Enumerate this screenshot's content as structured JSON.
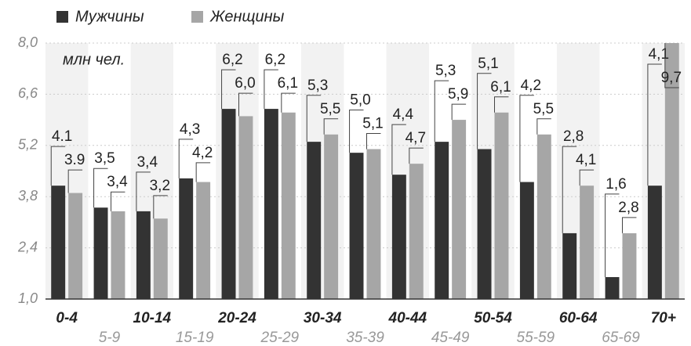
{
  "chart_data": {
    "type": "bar",
    "unit_label": "млн чел.",
    "categories": [
      "0-4",
      "5-9",
      "10-14",
      "15-19",
      "20-24",
      "25-29",
      "30-34",
      "35-39",
      "40-44",
      "45-49",
      "50-54",
      "55-59",
      "60-64",
      "65-69",
      "70+"
    ],
    "series": [
      {
        "name": "Мужчины",
        "color": "#333333",
        "values": [
          4.1,
          3.5,
          3.4,
          4.3,
          6.2,
          6.2,
          5.3,
          5.0,
          4.4,
          5.3,
          5.1,
          4.2,
          2.8,
          1.6,
          4.1
        ],
        "value_labels": [
          "4.1",
          "3,5",
          "3,4",
          "4,3",
          "6,2",
          "6,2",
          "5,3",
          "5,0",
          "4,4",
          "5,3",
          "5,1",
          "4,2",
          "2,8",
          "1,6",
          "4,1"
        ]
      },
      {
        "name": "Женщины",
        "color": "#a6a6a6",
        "values": [
          3.9,
          3.4,
          3.2,
          4.2,
          6.0,
          6.1,
          5.5,
          5.1,
          4.7,
          5.9,
          6.1,
          5.5,
          4.1,
          2.8,
          9.7
        ],
        "value_labels": [
          "3.9",
          "3,4",
          "3,2",
          "4,2",
          "6,0",
          "6,1",
          "5,5",
          "5,1",
          "4,7",
          "5,9",
          "6,1",
          "5,5",
          "4,1",
          "2,8",
          "9,7"
        ]
      }
    ],
    "ylim": [
      1.0,
      8.0
    ],
    "yticks": [
      {
        "value": 1.0,
        "label": "1,0"
      },
      {
        "value": 2.4,
        "label": "2,4"
      },
      {
        "value": 3.8,
        "label": "3,8"
      },
      {
        "value": 5.2,
        "label": "5,2"
      },
      {
        "value": 6.6,
        "label": "6,6"
      },
      {
        "value": 8.0,
        "label": "8,0"
      }
    ],
    "grid": true,
    "legend": "top-left"
  }
}
